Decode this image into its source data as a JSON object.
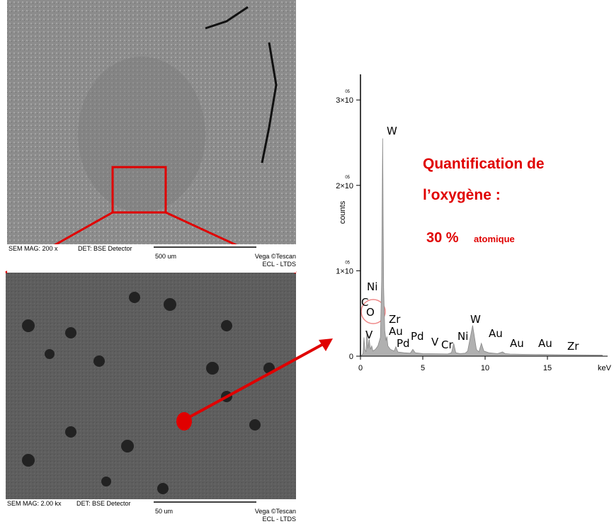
{
  "sem_images": [
    {
      "magnification": "SEM MAG: 200 x",
      "detector": "DET: BSE Detector",
      "scale": "500 um",
      "brand": "Vega ©Tescan",
      "lab": "ECL - LTDS"
    },
    {
      "magnification": "SEM MAG: 2.00 kx",
      "detector": "DET: BSE Detector",
      "scale": "50 um",
      "brand": "Vega ©Tescan",
      "lab": "ECL - LTDS"
    }
  ],
  "chart_data": {
    "type": "area",
    "ylabel": "counts",
    "xlabel": "keV",
    "xlim": [
      0,
      20
    ],
    "xticks": [
      0,
      5,
      10,
      15
    ],
    "ylim": [
      0,
      330000
    ],
    "yticks": [
      0,
      {
        "value": 100000,
        "label": "1×10",
        "exponent": "05"
      },
      {
        "value": 200000,
        "label": "2×10",
        "exponent": "05"
      },
      {
        "value": 300000,
        "label": "3×10",
        "exponent": "05"
      }
    ],
    "color": "#b0b0b0",
    "series": [
      {
        "x": [
          0.05,
          0.2,
          0.28,
          0.35,
          0.45,
          0.52,
          0.6,
          0.7,
          0.8,
          0.9,
          1.0,
          1.2,
          1.4,
          1.6,
          1.7,
          1.78,
          1.86,
          1.95,
          2.05,
          2.12,
          2.2,
          2.4,
          2.7,
          2.84,
          3.0,
          3.5,
          4.0,
          4.2,
          4.4,
          5.0,
          6.0,
          7.0,
          7.3,
          7.48,
          7.65,
          8.0,
          8.4,
          8.6,
          9.0,
          9.3,
          9.5,
          9.7,
          9.9,
          10.3,
          11.0,
          11.4,
          11.6,
          12.0,
          13.0,
          14.0,
          15.0,
          17.0,
          19.4
        ],
        "values": [
          0,
          3000,
          22000,
          8000,
          5000,
          30000,
          9000,
          20000,
          8000,
          12000,
          6000,
          8000,
          12000,
          22000,
          90000,
          255000,
          80000,
          30000,
          18000,
          23000,
          12000,
          8000,
          6000,
          11000,
          5000,
          4000,
          3500,
          8000,
          4000,
          3000,
          2800,
          2600,
          4000,
          15000,
          4000,
          3000,
          3500,
          6000,
          36000,
          8000,
          5000,
          15000,
          6000,
          4000,
          3000,
          5000,
          3000,
          2500,
          2200,
          2000,
          1800,
          1500,
          1200
        ]
      }
    ],
    "peak_labels": [
      "W",
      "Ni",
      "C",
      "O",
      "V",
      "Zr",
      "Au",
      "Pd",
      "Pd",
      "V",
      "Cr",
      "Ni",
      "W",
      "Au",
      "Au",
      "Au",
      "Zr"
    ]
  },
  "note": {
    "line1": "Quantification de",
    "line2": "l’oxygène :",
    "percent": "30 %",
    "unit": "atomique"
  }
}
